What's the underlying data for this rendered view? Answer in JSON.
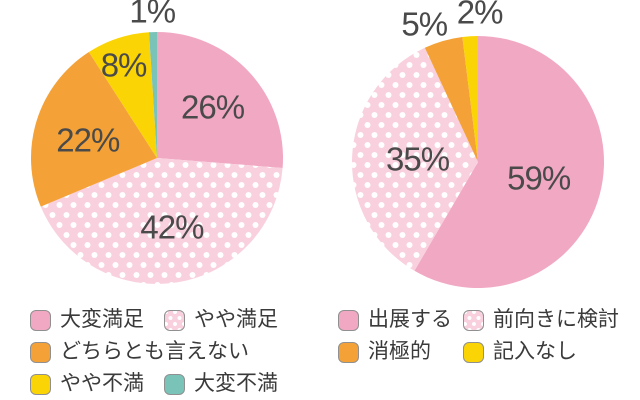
{
  "colors": {
    "solid_pink": "#F1A8C3",
    "dotted_pink_bg": "#F9D0DE",
    "dot_white": "#FFFFFF",
    "orange": "#F4A237",
    "yellow": "#FBD405",
    "teal": "#79C3B9",
    "percent_label_text": "#4A4A4A",
    "legend_text": "#3A3A3A",
    "swatch_border": "#909090",
    "background": "#FFFFFF"
  },
  "chart_data": [
    {
      "type": "pie",
      "title": "",
      "unit": "%",
      "direction": "clockwise",
      "start_angle_deg": 0,
      "legend_position": "below",
      "slices": [
        {
          "label": "大変満足",
          "value": 26,
          "display": "26%",
          "color": "#F1A8C3",
          "pattern": "solid"
        },
        {
          "label": "やや満足",
          "value": 42,
          "display": "42%",
          "color": "#F9D0DE",
          "pattern": "white-dots"
        },
        {
          "label": "どちらとも言えない",
          "value": 22,
          "display": "22%",
          "color": "#F4A237",
          "pattern": "solid"
        },
        {
          "label": "やや不満",
          "value": 8,
          "display": "8%",
          "color": "#FBD405",
          "pattern": "solid"
        },
        {
          "label": "大変不満",
          "value": 1,
          "display": "1%",
          "color": "#79C3B9",
          "pattern": "solid"
        }
      ]
    },
    {
      "type": "pie",
      "title": "",
      "unit": "%",
      "direction": "clockwise",
      "start_angle_deg": 0,
      "legend_position": "below",
      "slices": [
        {
          "label": "出展する",
          "value": 59,
          "display": "59%",
          "color": "#F1A8C3",
          "pattern": "solid"
        },
        {
          "label": "前向きに検討",
          "value": 35,
          "display": "35%",
          "color": "#F9D0DE",
          "pattern": "white-dots"
        },
        {
          "label": "消極的",
          "value": 5,
          "display": "5%",
          "color": "#F4A237",
          "pattern": "solid"
        },
        {
          "label": "記入なし",
          "value": 2,
          "display": "2%",
          "color": "#FBD405",
          "pattern": "solid"
        }
      ]
    }
  ]
}
